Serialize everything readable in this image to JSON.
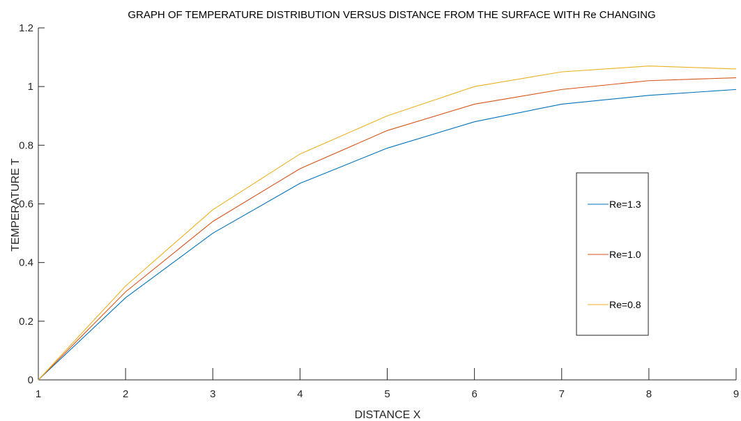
{
  "chart_data": {
    "type": "line",
    "title": "GRAPH OF TEMPERATURE DISTRIBUTION VERSUS DISTANCE FROM THE SURFACE WITH Re CHANGING",
    "xlabel": "DISTANCE X",
    "ylabel": "TEMPERATURE T",
    "xlim": [
      1,
      9
    ],
    "ylim": [
      0,
      1.2
    ],
    "x_ticks": [
      "1",
      "2",
      "3",
      "4",
      "5",
      "6",
      "7",
      "8",
      "9"
    ],
    "y_ticks": [
      "0",
      "0.2",
      "0.4",
      "0.6",
      "0.8",
      "1",
      "1.2"
    ],
    "x": [
      1,
      2,
      3,
      4,
      5,
      6,
      7,
      8,
      9
    ],
    "series": [
      {
        "name": "Re=1.3",
        "color": "#0072BD",
        "values": [
          0,
          0.28,
          0.5,
          0.67,
          0.79,
          0.88,
          0.94,
          0.97,
          0.99
        ]
      },
      {
        "name": "Re=1.0",
        "color": "#D95319",
        "values": [
          0,
          0.3,
          0.54,
          0.72,
          0.85,
          0.94,
          0.99,
          1.02,
          1.03
        ]
      },
      {
        "name": "Re=0.8",
        "color": "#EDB120",
        "values": [
          0,
          0.32,
          0.58,
          0.77,
          0.9,
          1.0,
          1.05,
          1.07,
          1.06
        ]
      }
    ],
    "grid": false,
    "legend_position": "right"
  }
}
